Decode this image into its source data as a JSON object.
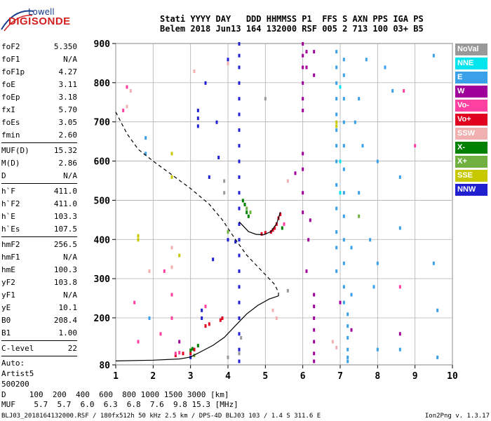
{
  "logo": {
    "line1": "Lowell",
    "line2": "DIGISONDE"
  },
  "header": {
    "labels": "Stati YYYY DAY   DDD HHMMSS P1  FFS S AXN PPS IGA PS",
    "values": "Belem 2018 Jun13 164 132000 RSF 005 2 713 100 03+ B5"
  },
  "params_group1": [
    {
      "k": "foF2",
      "v": "5.350"
    },
    {
      "k": "foF1",
      "v": "N/A"
    },
    {
      "k": "foF1p",
      "v": "4.27"
    },
    {
      "k": "foE",
      "v": "3.11"
    },
    {
      "k": "foEp",
      "v": "3.18"
    },
    {
      "k": "fxI",
      "v": "5.70"
    },
    {
      "k": "foEs",
      "v": "3.05"
    },
    {
      "k": "fmin",
      "v": "2.60"
    }
  ],
  "params_group2": [
    {
      "k": "MUF(D)",
      "v": "15.32"
    },
    {
      "k": "M(D)",
      "v": "2.86"
    },
    {
      "k": "D",
      "v": "N/A"
    }
  ],
  "params_group3": [
    {
      "k": "h`F",
      "v": "411.0"
    },
    {
      "k": "h`F2",
      "v": "411.0"
    },
    {
      "k": "h`E",
      "v": "103.3"
    },
    {
      "k": "h`Es",
      "v": "107.5"
    }
  ],
  "params_group4": [
    {
      "k": "hmF2",
      "v": "256.5"
    },
    {
      "k": "hmF1",
      "v": "N/A"
    },
    {
      "k": "hmE",
      "v": "100.3"
    },
    {
      "k": "yF2",
      "v": "103.8"
    },
    {
      "k": "yF1",
      "v": "N/A"
    },
    {
      "k": "yE",
      "v": "10.1"
    },
    {
      "k": "B0",
      "v": "208.4"
    },
    {
      "k": "B1",
      "v": "1.00"
    }
  ],
  "params_group5": [
    {
      "k": "C-level",
      "v": "22"
    }
  ],
  "auto": {
    "l1": "Auto:",
    "l2": "Artist5",
    "l3": "500200"
  },
  "legend": [
    {
      "label": "NoVal",
      "color": "#999999"
    },
    {
      "label": "NNE",
      "color": "#00e5ee"
    },
    {
      "label": "E",
      "color": "#3aa0e8"
    },
    {
      "label": "W",
      "color": "#a0009a"
    },
    {
      "label": "Vo-",
      "color": "#ff40a0"
    },
    {
      "label": "Vo+",
      "color": "#e00020"
    },
    {
      "label": "SSW",
      "color": "#f0b0b0"
    },
    {
      "label": "X-",
      "color": "#008000"
    },
    {
      "label": "X+",
      "color": "#70b040"
    },
    {
      "label": "SSE",
      "color": "#c8c800"
    },
    {
      "label": "NNW",
      "color": "#2020d0"
    }
  ],
  "footer": {
    "d_row": "D     100  200  400  600  800 1000 1500 3000 [km]",
    "muf_row": "MUF    5.7  5.7  6.0  6.3  6.8  7.6  9.8 15.3 [MHz]"
  },
  "bottom": {
    "left": "BLJ03_2018164132000.RSF / 180fx512h 50 kHz 2.5 km / DPS-4D BLJ03 103 / 1.4 S 311.6 E",
    "right": "Ion2Png v. 1.3.17"
  },
  "chart_data": {
    "type": "scatter",
    "x_ticks": [
      1,
      2,
      3,
      4,
      5,
      6,
      7,
      8,
      9,
      10
    ],
    "y_ticks": [
      80,
      200,
      300,
      400,
      500,
      600,
      700,
      800,
      900
    ],
    "xlim": [
      1,
      10
    ],
    "ylim": [
      80,
      900
    ],
    "xlabel": "",
    "ylabel": "",
    "grid": true,
    "profile_dashed": [
      [
        1.0,
        725
      ],
      [
        1.3,
        670
      ],
      [
        1.6,
        630
      ],
      [
        2.0,
        600
      ],
      [
        2.5,
        565
      ],
      [
        3.0,
        530
      ],
      [
        3.5,
        490
      ],
      [
        3.85,
        450
      ],
      [
        4.2,
        400
      ],
      [
        4.5,
        360
      ],
      [
        4.8,
        330
      ],
      [
        5.05,
        305
      ],
      [
        5.25,
        285
      ],
      [
        5.35,
        265
      ],
      [
        5.35,
        255
      ]
    ],
    "profile_solid": [
      [
        1.0,
        90
      ],
      [
        2.0,
        92
      ],
      [
        2.7,
        95
      ],
      [
        3.0,
        100
      ],
      [
        3.3,
        115
      ],
      [
        3.6,
        130
      ],
      [
        3.9,
        150
      ],
      [
        4.2,
        180
      ],
      [
        4.5,
        210
      ],
      [
        4.8,
        232
      ],
      [
        5.1,
        248
      ],
      [
        5.35,
        256
      ]
    ],
    "trace_solid": [
      [
        4.3,
        445
      ],
      [
        4.55,
        420
      ],
      [
        4.75,
        413
      ],
      [
        4.95,
        412
      ],
      [
        5.15,
        420
      ],
      [
        5.3,
        440
      ],
      [
        5.4,
        470
      ]
    ],
    "traces": [
      {
        "name": "NNW",
        "color": "#2020d0",
        "points": [
          [
            4.3,
            900
          ],
          [
            4.3,
            870
          ],
          [
            4.3,
            840
          ],
          [
            4.3,
            800
          ],
          [
            4.3,
            760
          ],
          [
            4.3,
            720
          ],
          [
            4.3,
            680
          ],
          [
            4.3,
            640
          ],
          [
            4.3,
            600
          ],
          [
            4.3,
            560
          ],
          [
            4.3,
            520
          ],
          [
            4.3,
            480
          ],
          [
            4.3,
            440
          ],
          [
            4.3,
            400
          ],
          [
            4.3,
            360
          ],
          [
            4.3,
            320
          ],
          [
            4.3,
            280
          ],
          [
            4.3,
            240
          ],
          [
            4.3,
            200
          ],
          [
            4.3,
            160
          ],
          [
            4.3,
            120
          ],
          [
            4.3,
            90
          ],
          [
            3.2,
            730
          ],
          [
            3.2,
            710
          ],
          [
            3.2,
            690
          ],
          [
            3.3,
            220
          ],
          [
            3.3,
            200
          ],
          [
            3.4,
            800
          ],
          [
            3.5,
            560
          ],
          [
            3.6,
            350
          ],
          [
            3.1,
            120
          ],
          [
            3.0,
            100
          ],
          [
            4.0,
            860
          ],
          [
            4.2,
            395
          ],
          [
            4.0,
            400
          ],
          [
            3.7,
            700
          ],
          [
            3.75,
            610
          ]
        ]
      },
      {
        "name": "W",
        "color": "#a0009a",
        "points": [
          [
            6.0,
            900
          ],
          [
            6.0,
            870
          ],
          [
            6.0,
            840
          ],
          [
            6.0,
            800
          ],
          [
            6.0,
            760
          ],
          [
            6.0,
            730
          ],
          [
            6.0,
            620
          ],
          [
            6.0,
            580
          ],
          [
            6.0,
            520
          ],
          [
            6.0,
            470
          ],
          [
            6.3,
            260
          ],
          [
            6.3,
            230
          ],
          [
            6.3,
            200
          ],
          [
            6.3,
            170
          ],
          [
            6.3,
            140
          ],
          [
            6.3,
            110
          ],
          [
            6.3,
            90
          ],
          [
            6.1,
            880
          ],
          [
            6.1,
            840
          ],
          [
            6.15,
            400
          ],
          [
            6.1,
            320
          ],
          [
            6.3,
            880
          ],
          [
            6.3,
            820
          ],
          [
            5.8,
            570
          ],
          [
            6.2,
            450
          ],
          [
            7.0,
            240
          ],
          [
            7.3,
            170
          ],
          [
            8.6,
            160
          ],
          [
            2.7,
            140
          ]
        ]
      },
      {
        "name": "E",
        "color": "#3aa0e8",
        "points": [
          [
            6.9,
            880
          ],
          [
            6.9,
            840
          ],
          [
            6.9,
            800
          ],
          [
            6.9,
            760
          ],
          [
            6.9,
            720
          ],
          [
            6.9,
            680
          ],
          [
            6.9,
            640
          ],
          [
            6.9,
            600
          ],
          [
            6.9,
            540
          ],
          [
            6.9,
            480
          ],
          [
            6.9,
            420
          ],
          [
            6.9,
            380
          ],
          [
            6.9,
            320
          ],
          [
            7.1,
            860
          ],
          [
            7.1,
            820
          ],
          [
            7.1,
            760
          ],
          [
            7.1,
            700
          ],
          [
            7.1,
            640
          ],
          [
            7.1,
            580
          ],
          [
            7.1,
            520
          ],
          [
            7.1,
            460
          ],
          [
            7.1,
            400
          ],
          [
            7.1,
            340
          ],
          [
            7.1,
            280
          ],
          [
            7.1,
            240
          ],
          [
            7.2,
            210
          ],
          [
            7.2,
            180
          ],
          [
            7.2,
            150
          ],
          [
            7.2,
            120
          ],
          [
            7.2,
            100
          ],
          [
            7.2,
            90
          ],
          [
            7.3,
            260
          ],
          [
            7.3,
            380
          ],
          [
            7.4,
            700
          ],
          [
            7.5,
            520
          ],
          [
            7.6,
            640
          ],
          [
            7.7,
            860
          ],
          [
            7.8,
            400
          ],
          [
            7.9,
            280
          ],
          [
            8.0,
            600
          ],
          [
            8.0,
            340
          ],
          [
            8.0,
            120
          ],
          [
            8.2,
            840
          ],
          [
            8.6,
            560
          ],
          [
            8.6,
            430
          ],
          [
            8.6,
            120
          ],
          [
            9.5,
            870
          ],
          [
            9.5,
            340
          ],
          [
            9.6,
            220
          ],
          [
            9.6,
            100
          ],
          [
            8.4,
            780
          ],
          [
            1.8,
            660
          ],
          [
            1.8,
            620
          ],
          [
            1.9,
            200
          ],
          [
            7.5,
            760
          ]
        ]
      },
      {
        "name": "Vo+",
        "color": "#e00020",
        "points": [
          [
            5.15,
            420
          ],
          [
            5.2,
            425
          ],
          [
            5.25,
            430
          ],
          [
            5.3,
            440
          ],
          [
            5.35,
            455
          ],
          [
            5.4,
            465
          ],
          [
            4.9,
            415
          ],
          [
            5.0,
            418
          ],
          [
            3.0,
            110
          ],
          [
            3.1,
            120
          ],
          [
            3.4,
            180
          ],
          [
            3.5,
            185
          ],
          [
            3.8,
            195
          ],
          [
            3.85,
            200
          ],
          [
            2.8,
            110
          ],
          [
            2.6,
            105
          ]
        ]
      },
      {
        "name": "Vo-",
        "color": "#ff40a0",
        "points": [
          [
            2.5,
            260
          ],
          [
            2.5,
            200
          ],
          [
            2.3,
            320
          ],
          [
            1.5,
            240
          ],
          [
            1.6,
            140
          ],
          [
            1.2,
            730
          ],
          [
            1.3,
            790
          ],
          [
            2.2,
            160
          ],
          [
            2.6,
            110
          ],
          [
            2.7,
            112
          ],
          [
            8.6,
            280
          ],
          [
            9.0,
            640
          ],
          [
            8.7,
            780
          ],
          [
            3.4,
            230
          ],
          [
            5.5,
            440
          ]
        ]
      },
      {
        "name": "X-",
        "color": "#008000",
        "points": [
          [
            4.4,
            500
          ],
          [
            4.45,
            490
          ],
          [
            4.5,
            470
          ],
          [
            4.55,
            460
          ],
          [
            3.0,
            118
          ],
          [
            3.05,
            122
          ],
          [
            3.2,
            130
          ],
          [
            5.45,
            430
          ]
        ]
      },
      {
        "name": "X+",
        "color": "#70b040",
        "points": [
          [
            4.5,
            480
          ],
          [
            4.6,
            470
          ],
          [
            7.5,
            460
          ],
          [
            4.0,
            420
          ],
          [
            3.1,
            105
          ]
        ]
      },
      {
        "name": "SSE",
        "color": "#c8c800",
        "points": [
          [
            6.9,
            690
          ],
          [
            6.9,
            700
          ],
          [
            2.5,
            620
          ],
          [
            2.5,
            560
          ],
          [
            1.6,
            400
          ],
          [
            1.6,
            410
          ],
          [
            2.7,
            360
          ]
        ]
      },
      {
        "name": "SSW",
        "color": "#f0b0b0",
        "points": [
          [
            2.5,
            380
          ],
          [
            2.5,
            330
          ],
          [
            1.9,
            320
          ],
          [
            1.4,
            780
          ],
          [
            1.3,
            740
          ],
          [
            6.8,
            140
          ],
          [
            6.9,
            125
          ],
          [
            5.2,
            220
          ],
          [
            5.3,
            200
          ],
          [
            4.0,
            850
          ],
          [
            3.1,
            830
          ],
          [
            5.6,
            550
          ]
        ]
      },
      {
        "name": "NNE",
        "color": "#00e5ee",
        "points": [
          [
            7.0,
            790
          ],
          [
            7.0,
            600
          ],
          [
            7.0,
            520
          ]
        ]
      },
      {
        "name": "NoVal",
        "color": "#999999",
        "points": [
          [
            4.3,
            110
          ],
          [
            4.35,
            150
          ],
          [
            5.0,
            760
          ],
          [
            5.6,
            270
          ],
          [
            4.0,
            100
          ],
          [
            3.9,
            550
          ],
          [
            3.9,
            520
          ]
        ]
      }
    ]
  }
}
